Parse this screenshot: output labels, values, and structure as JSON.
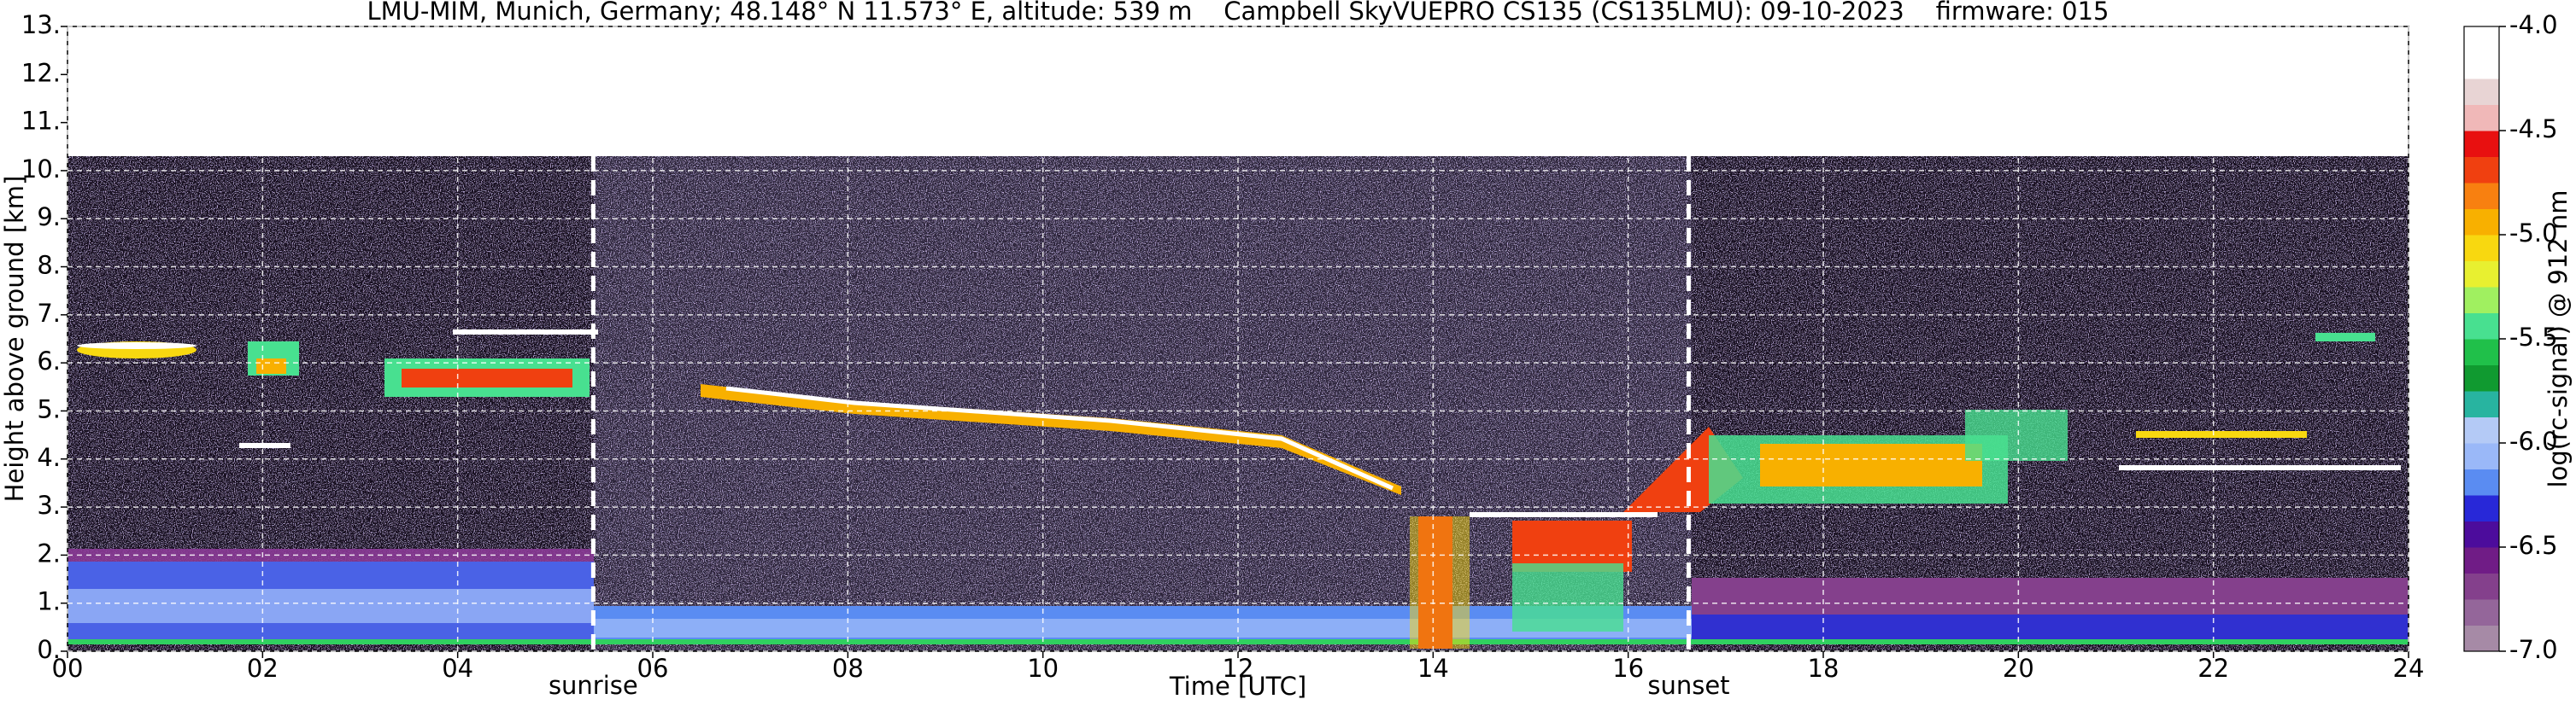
{
  "chart_data": {
    "type": "heatmap",
    "title": "LMU-MIM, Munich, Germany; 48.148° N 11.573° E, altitude: 539 m    Campbell SkyVUEPRO CS135 (CS135LMU): 09-10-2023    firmware: 015",
    "xlabel": "Time [UTC]",
    "ylabel": "Height above ground [km]",
    "xlim": [
      0,
      24
    ],
    "xticks": [
      {
        "value": 0,
        "label": "00"
      },
      {
        "value": 2,
        "label": "02"
      },
      {
        "value": 4,
        "label": "04"
      },
      {
        "value": 6,
        "label": "06"
      },
      {
        "value": 8,
        "label": "08"
      },
      10,
      12,
      14,
      16,
      18,
      20,
      22,
      24
    ],
    "ylim": [
      0,
      13
    ],
    "yticks": [
      {
        "value": 0,
        "label": "0."
      },
      {
        "value": 1,
        "label": "1."
      },
      {
        "value": 2,
        "label": "2."
      },
      {
        "value": 3,
        "label": "3."
      },
      {
        "value": 4,
        "label": "4."
      },
      {
        "value": 5,
        "label": "5."
      },
      {
        "value": 6,
        "label": "6."
      },
      {
        "value": 7,
        "label": "7."
      },
      {
        "value": 8,
        "label": "8."
      },
      {
        "value": 9,
        "label": "9."
      },
      {
        "value": 10,
        "label": "10."
      },
      {
        "value": 11,
        "label": "11."
      },
      {
        "value": 12,
        "label": "12."
      },
      {
        "value": 13,
        "label": "13."
      }
    ],
    "grid": true,
    "grid_color": "#ffffff",
    "annotations": [
      {
        "text": "sunrise",
        "x": 5.39
      },
      {
        "text": "sunset",
        "x": 16.62
      }
    ],
    "colorbar": {
      "label": "log(rc-signal) @ 912 nm",
      "lim": [
        -7,
        -4
      ],
      "ticks": [
        {
          "value": -7,
          "label": "-7.0"
        },
        -6.5,
        {
          "value": -6,
          "label": "-6.0"
        },
        -5.5,
        {
          "value": -5,
          "label": "-5.0"
        },
        -4.5,
        {
          "value": -4,
          "label": "-4.0"
        }
      ],
      "colors": [
        "#a68aa6",
        "#94669a",
        "#84408c",
        "#701c86",
        "#4c0c9c",
        "#2828d8",
        "#5a8cf2",
        "#9ab8f8",
        "#b4caf6",
        "#28b4a0",
        "#109a30",
        "#20c04a",
        "#48e090",
        "#a0f060",
        "#e8f030",
        "#f8d810",
        "#f8b000",
        "#f88010",
        "#f04010",
        "#e81010",
        "#f0b8b8",
        "#e8d4d4",
        "#ffffff",
        "#ffffff"
      ]
    }
  }
}
